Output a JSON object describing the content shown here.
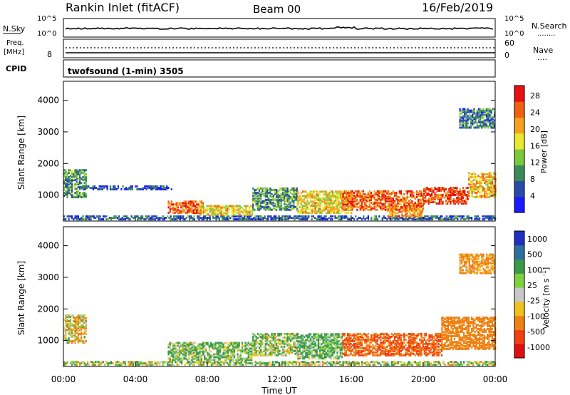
{
  "header": {
    "station": "Rankin Inlet (fitACF)",
    "beam": "Beam 00",
    "date": "16/Feb/2019"
  },
  "noise_panel": {
    "left_label": "N.Sky",
    "right_label": "N.Search",
    "left_ticks": [
      "10^5",
      "10^0"
    ],
    "right_ticks": [
      "10^5",
      "10^0"
    ],
    "right_legend": "........"
  },
  "freq_panel": {
    "left_label_1": "Freq.",
    "left_label_2": "[MHz]",
    "left_tick": "8",
    "right_label": "Nave",
    "right_ticks": [
      "60",
      "0"
    ],
    "right_legend": "...."
  },
  "cpid": {
    "label": "CPID",
    "value": "twofsound (1-min) 3505"
  },
  "chart_data": [
    {
      "type": "heatmap",
      "title": "",
      "xlabel": "Time UT",
      "ylabel": "Slant Range [km]",
      "x_ticks": [
        "00:00",
        "04:00",
        "08:00",
        "12:00",
        "16:00",
        "20:00",
        "00:00"
      ],
      "x_range_hours": [
        0,
        24
      ],
      "y_ticks": [
        1000,
        2000,
        3000,
        4000
      ],
      "ylim": [
        180,
        4600
      ],
      "colorbar": {
        "label": "Power [dB]",
        "ticks": [
          "4",
          "8",
          "12",
          "16",
          "20",
          "24",
          "28"
        ],
        "range": [
          0,
          30
        ],
        "colors": [
          "#1a1aff",
          "#2a4aa8",
          "#3a8a5a",
          "#7bc93a",
          "#e8e830",
          "#f5a020",
          "#f06010",
          "#e81010"
        ]
      },
      "echo_regions": [
        {
          "t0": 0.0,
          "t1": 1.3,
          "r0": 900,
          "r1": 1800,
          "value": 10
        },
        {
          "t0": 0.0,
          "t1": 24.0,
          "r0": 200,
          "r1": 300,
          "value": 6
        },
        {
          "t0": 1.0,
          "t1": 6.0,
          "r0": 1150,
          "r1": 1250,
          "value": 5
        },
        {
          "t0": 5.8,
          "t1": 7.8,
          "r0": 400,
          "r1": 800,
          "value": 24
        },
        {
          "t0": 7.5,
          "t1": 10.5,
          "r0": 350,
          "r1": 650,
          "value": 18
        },
        {
          "t0": 10.5,
          "t1": 13.0,
          "r0": 500,
          "r1": 1200,
          "value": 10
        },
        {
          "t0": 13.0,
          "t1": 16.0,
          "r0": 400,
          "r1": 1100,
          "value": 18
        },
        {
          "t0": 15.5,
          "t1": 20.0,
          "r0": 500,
          "r1": 1100,
          "value": 24
        },
        {
          "t0": 18.0,
          "t1": 20.0,
          "r0": 300,
          "r1": 600,
          "value": 22
        },
        {
          "t0": 20.0,
          "t1": 22.5,
          "r0": 700,
          "r1": 1200,
          "value": 26
        },
        {
          "t0": 22.5,
          "t1": 24.0,
          "r0": 900,
          "r1": 1700,
          "value": 20
        },
        {
          "t0": 22.0,
          "t1": 24.0,
          "r0": 3100,
          "r1": 3700,
          "value": 8
        }
      ]
    },
    {
      "type": "heatmap",
      "title": "",
      "xlabel": "Time UT",
      "ylabel": "Slant Range [km]",
      "x_ticks": [
        "00:00",
        "04:00",
        "08:00",
        "12:00",
        "16:00",
        "20:00",
        "00:00"
      ],
      "x_range_hours": [
        0,
        24
      ],
      "y_ticks": [
        1000,
        2000,
        3000,
        4000
      ],
      "ylim": [
        180,
        4600
      ],
      "colorbar": {
        "label": "Velocity [m s^-1]",
        "ticks": [
          "1000",
          "500",
          "100",
          "25",
          "-25",
          "-100",
          "-500",
          "-1000"
        ],
        "colors": [
          "#2030c0",
          "#2f6fa0",
          "#3a9a4a",
          "#7ed040",
          "#c8c8c8",
          "#f0c020",
          "#f08010",
          "#f04010",
          "#e01010"
        ]
      },
      "echo_regions": [
        {
          "t0": 0.0,
          "t1": 1.3,
          "r0": 900,
          "r1": 1800,
          "value": -50
        },
        {
          "t0": 0.0,
          "t1": 24.0,
          "r0": 200,
          "r1": 300,
          "value": 50
        },
        {
          "t0": 5.8,
          "t1": 10.5,
          "r0": 350,
          "r1": 900,
          "value": 100
        },
        {
          "t0": 10.5,
          "t1": 13.0,
          "r0": 500,
          "r1": 1200,
          "value": 80
        },
        {
          "t0": 13.0,
          "t1": 15.5,
          "r0": 400,
          "r1": 1200,
          "value": 150
        },
        {
          "t0": 15.5,
          "t1": 21.0,
          "r0": 500,
          "r1": 1200,
          "value": -500
        },
        {
          "t0": 21.0,
          "t1": 24.0,
          "r0": 700,
          "r1": 1700,
          "value": -300
        },
        {
          "t0": 22.0,
          "t1": 24.0,
          "r0": 3100,
          "r1": 3700,
          "value": -200
        }
      ]
    }
  ]
}
